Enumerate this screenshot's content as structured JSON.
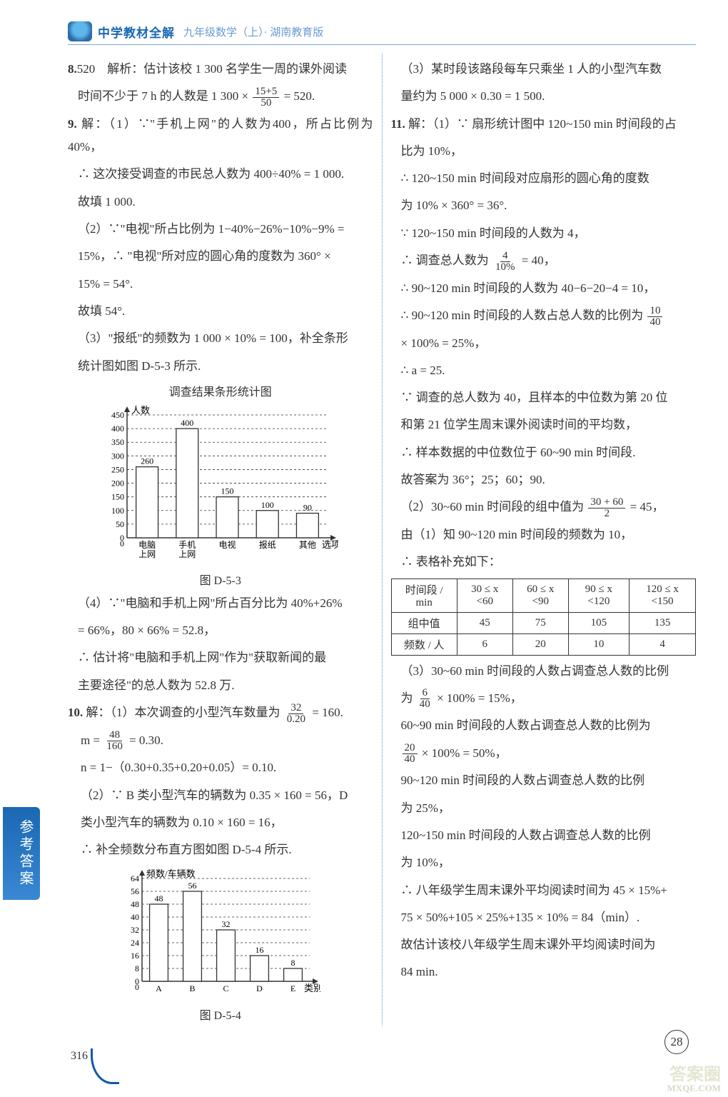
{
  "header": {
    "title": "中学教材全解",
    "subtitle": "九年级数学（上）· 湖南教育版"
  },
  "left": {
    "p8_label": "8.",
    "p8_ans": "520",
    "p8_text1": "解析：估计该校 1 300 名学生一周的课外阅读",
    "p8_text2": "时间不少于 7 h 的人数是 1 300 ×",
    "p8_frac_num": "15+5",
    "p8_frac_den": "50",
    "p8_text3": "= 520.",
    "p9_label": "9.",
    "p9_1a": "解：（1）∵\"手机上网\"的人数为400，所占比例为40%，",
    "p9_1b": "∴ 这次接受调查的市民总人数为 400÷40% = 1 000.",
    "p9_1c": "故填 1 000.",
    "p9_2a": "（2）∵\"电视\"所占比例为 1−40%−26%−10%−9% =",
    "p9_2b": "15%，∴ \"电视\"所对应的圆心角的度数为 360° ×",
    "p9_2c": "15% = 54°.",
    "p9_2d": "故填 54°.",
    "p9_3a": "（3）\"报纸\"的频数为 1 000 × 10% = 100，补全条形",
    "p9_3b": "统计图如图 D-5-3 所示.",
    "chart1_title": "调查结果条形统计图",
    "chart1": {
      "ylabel": "人数",
      "xlabel": "选项",
      "ymax": 450,
      "ystep": 50,
      "categories": [
        "电脑\n上网",
        "手机\n上网",
        "电视",
        "报纸",
        "其他"
      ],
      "values": [
        260,
        400,
        150,
        100,
        90
      ],
      "caption": "图 D-5-3"
    },
    "p9_4a": "（4）∵\"电脑和手机上网\"所占百分比为 40%+26%",
    "p9_4b": "= 66%，80 × 66% = 52.8，",
    "p9_4c": "∴ 估计将\"电脑和手机上网\"作为\"获取新闻的最",
    "p9_4d": "主要途径\"的总人数为 52.8 万.",
    "p10_label": "10.",
    "p10_1a": "解：（1）本次调查的小型汽车数量为",
    "p10_1_frac_num": "32",
    "p10_1_frac_den": "0.20",
    "p10_1b": "= 160.",
    "p10_m": "m =",
    "p10_m_num": "48",
    "p10_m_den": "160",
    "p10_m2": "= 0.30.",
    "p10_n": "n = 1−（0.30+0.35+0.20+0.05）= 0.10.",
    "p10_2a": "（2）∵ B 类小型汽车的辆数为 0.35 × 160 = 56，D",
    "p10_2b": "类小型汽车的辆数为 0.10 × 160 = 16，",
    "p10_2c": "∴ 补全频数分布直方图如图 D-5-4 所示.",
    "chart2": {
      "ylabel": "频数/车辆数",
      "xlabel": "类别",
      "ymax": 64,
      "ystep": 8,
      "categories": [
        "A",
        "B",
        "C",
        "D",
        "E"
      ],
      "values": [
        48,
        56,
        32,
        16,
        8
      ],
      "caption": "图 D-5-4"
    }
  },
  "right": {
    "p10_3a": "（3）某时段该路段每车只乘坐 1 人的小型汽车数",
    "p10_3b": "量约为 5 000 × 0.30 = 1 500.",
    "p11_label": "11.",
    "p11_1a": "解：（1）∵ 扇形统计图中 120~150 min 时间段的占",
    "p11_1b": "比为 10%，",
    "p11_1c": "∴ 120~150 min 时间段对应扇形的圆心角的度数",
    "p11_1d": "为 10% × 360° = 36°.",
    "p11_1e": "∵ 120~150 min 时间段的人数为 4，",
    "p11_1f_pre": "∴ 调查总人数为",
    "p11_1f_num": "4",
    "p11_1f_den": "10%",
    "p11_1f_post": "= 40，",
    "p11_1g": "∴ 90~120 min 时间段的人数为 40−6−20−4 = 10，",
    "p11_1h_pre": "∴ 90~120 min 时间段的人数占总人数的比例为",
    "p11_1h_num": "10",
    "p11_1h_den": "40",
    "p11_1i": " × 100% = 25%，",
    "p11_1j": "∴ a = 25.",
    "p11_1k": "∵ 调查的总人数为 40，且样本的中位数为第 20 位",
    "p11_1l": "和第 21 位学生周末课外阅读时间的平均数，",
    "p11_1m": "∴ 样本数据的中位数位于 60~90 min 时间段.",
    "p11_1n": "故答案为 36°；25；60；90.",
    "p11_2a_pre": "（2）30~60 min 时间段的组中值为",
    "p11_2a_num": "30 + 60",
    "p11_2a_den": "2",
    "p11_2a_post": "= 45，",
    "p11_2b": "由（1）知 90~120 min 时间段的频数为 10，",
    "p11_2c": "∴ 表格补充如下：",
    "table": {
      "h1": "时间段 / min",
      "h2": "30 ≤ x <60",
      "h3": "60 ≤ x <90",
      "h4": "90 ≤ x <120",
      "h5": "120 ≤ x <150",
      "r2_h": "组中值",
      "r2_1": "45",
      "r2_2": "75",
      "r2_3": "105",
      "r2_4": "135",
      "r3_h": "频数 / 人",
      "r3_1": "6",
      "r3_2": "20",
      "r3_3": "10",
      "r3_4": "4"
    },
    "p11_3a": "（3）30~60 min 时间段的人数占调查总人数的比例",
    "p11_3a2_pre": "为",
    "p11_3a2_num": "6",
    "p11_3a2_den": "40",
    "p11_3a2_post": " × 100% = 15%，",
    "p11_3b": "60~90 min 时间段的人数占调查总人数的比例为",
    "p11_3b2_num": "20",
    "p11_3b2_den": "40",
    "p11_3b2_post": " × 100% = 50%，",
    "p11_3c": "90~120 min 时间段的人数占调查总人数的比例",
    "p11_3c2": "为 25%，",
    "p11_3d": "120~150 min 时间段的人数占调查总人数的比例",
    "p11_3d2": "为 10%，",
    "p11_3e": "∴ 八年级学生周末课外平均阅读时间为 45 × 15%+",
    "p11_3f": "75 × 50%+105 × 25%+135 × 10% = 84（min）.",
    "p11_3g": "故估计该校八年级学生周末课外平均阅读时间为",
    "p11_3h": "84 min."
  },
  "sideTab": "参考答案",
  "pageNum": "316",
  "circleNum": "28",
  "watermark": {
    "big": "答案圈",
    "small": "MXQE.COM"
  }
}
